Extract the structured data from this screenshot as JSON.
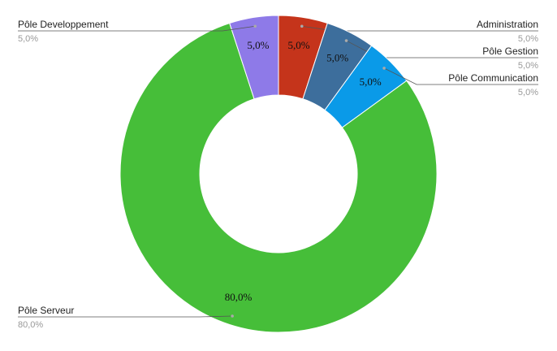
{
  "chart_data": {
    "type": "donut",
    "categories": [
      "Administration",
      "Pôle Gestion",
      "Pôle Communication",
      "Pôle Serveur",
      "Pôle Developpement"
    ],
    "values": [
      5,
      5,
      5,
      80,
      5
    ],
    "value_labels": [
      "5,0%",
      "5,0%",
      "5,0%",
      "80,0%",
      "5,0%"
    ],
    "colors": [
      "#c5341b",
      "#3d6e9c",
      "#0a9ae8",
      "#46be39",
      "#8e7ae8"
    ]
  }
}
